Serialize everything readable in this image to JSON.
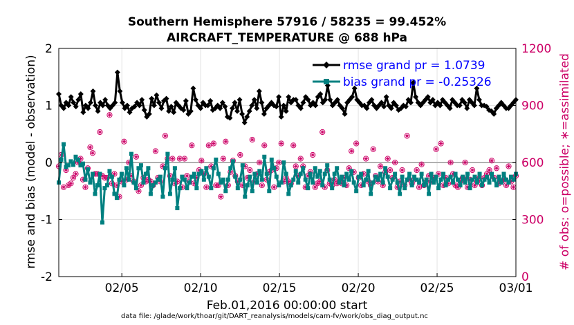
{
  "chart_data": {
    "type": "line",
    "title": "Southern Hemisphere 57916 / 58235 = 99.452%",
    "subtitle": "AIRCRAFT_TEMPERATURE @ 688 hPa",
    "ylabel": "rmse and bias (model - observation)",
    "y2label": "# of obs: o=possible; ∗=assimilated",
    "xlabel": "Feb.01,2016 00:00:00 start",
    "footer": "data file: /glade/work/thoar/git/DART_reanalysis/models/cam-fv/work/obs_diag_output.nc",
    "xlim": [
      0,
      29
    ],
    "ylim": [
      -2,
      2
    ],
    "y2lim": [
      0,
      1200
    ],
    "yticks": [
      {
        "v": 2,
        "label": "2"
      },
      {
        "v": 1,
        "label": "1"
      },
      {
        "v": 0,
        "label": "0"
      },
      {
        "v": -1,
        "label": "-1"
      },
      {
        "v": -2,
        "label": "-2"
      }
    ],
    "y2ticks": [
      {
        "v": 1200,
        "label": "1200"
      },
      {
        "v": 900,
        "label": "900"
      },
      {
        "v": 600,
        "label": "600"
      },
      {
        "v": 300,
        "label": "300"
      },
      {
        "v": 0,
        "label": "0"
      }
    ],
    "xticks": [
      {
        "v": 4,
        "label": "02/05"
      },
      {
        "v": 9,
        "label": "02/10"
      },
      {
        "v": 14,
        "label": "02/15"
      },
      {
        "v": 19,
        "label": "02/20"
      },
      {
        "v": 24,
        "label": "02/25"
      },
      {
        "v": 29,
        "label": "03/01"
      }
    ],
    "legend": [
      {
        "name": "rmse grand pr = 1.0739",
        "color": "#000000"
      },
      {
        "name": "bias grand pr = -0.25326",
        "color": "#008080"
      }
    ],
    "series": [
      {
        "name": "rmse",
        "color": "#000000",
        "axis": "left",
        "values": [
          1.2,
          1.0,
          0.95,
          1.05,
          1.0,
          1.15,
          1.05,
          0.98,
          1.1,
          1.2,
          0.88,
          1.0,
          0.95,
          1.05,
          1.25,
          1.0,
          0.9,
          1.05,
          1.0,
          1.1,
          1.0,
          0.95,
          1.0,
          1.05,
          1.58,
          1.25,
          1.05,
          0.95,
          1.0,
          0.88,
          0.95,
          0.98,
          1.05,
          1.0,
          1.1,
          0.92,
          0.8,
          0.85,
          1.12,
          1.0,
          1.18,
          1.05,
          0.95,
          1.08,
          1.12,
          0.9,
          0.98,
          0.88,
          1.05,
          1.0,
          0.95,
          0.92,
          1.08,
          0.85,
          0.9,
          1.3,
          1.1,
          1.0,
          0.95,
          1.05,
          1.0,
          1.0,
          1.08,
          0.92,
          0.95,
          1.0,
          0.95,
          1.05,
          0.98,
          0.8,
          0.78,
          0.95,
          1.05,
          0.9,
          1.1,
          0.85,
          0.7,
          0.8,
          0.9,
          1.0,
          1.1,
          0.95,
          1.25,
          1.05,
          0.85,
          0.95,
          1.0,
          1.05,
          1.0,
          0.98,
          1.15,
          0.8,
          1.0,
          0.9,
          1.15,
          1.05,
          1.1,
          1.1,
          1.0,
          0.95,
          1.05,
          1.15,
          1.1,
          1.0,
          1.05,
          1.0,
          1.15,
          1.2,
          1.05,
          1.1,
          1.35,
          1.1,
          1.0,
          1.05,
          1.1,
          1.0,
          0.95,
          0.85,
          1.05,
          1.1,
          1.15,
          1.3,
          1.1,
          1.05,
          1.0,
          1.0,
          0.95,
          1.05,
          1.1,
          1.0,
          0.95,
          1.0,
          1.05,
          0.98,
          1.15,
          1.0,
          0.95,
          1.05,
          1.0,
          0.92,
          0.95,
          1.0,
          0.98,
          1.1,
          1.05,
          1.4,
          1.15,
          1.05,
          1.0,
          1.05,
          1.1,
          1.15,
          1.05,
          1.1,
          1.0,
          1.05,
          1.0,
          1.1,
          1.05,
          1.0,
          0.95,
          1.1,
          1.05,
          1.0,
          1.0,
          1.1,
          1.05,
          0.95,
          1.1,
          1.05,
          1.0,
          1.3,
          1.1,
          1.0,
          1.0,
          0.98,
          0.92,
          0.9,
          0.85,
          0.95,
          1.0,
          1.05,
          1.0,
          0.95,
          0.95,
          1.0,
          1.05,
          1.1
        ]
      },
      {
        "name": "bias",
        "color": "#008080",
        "axis": "left",
        "values": [
          -0.35,
          0.05,
          0.32,
          -0.08,
          -0.05,
          0.02,
          -0.04,
          0.1,
          0.05,
          -0.05,
          -0.02,
          -0.3,
          -0.12,
          -0.35,
          -0.2,
          -0.55,
          -0.4,
          -0.2,
          -1.05,
          -0.45,
          -0.4,
          -0.15,
          -0.25,
          -0.55,
          -0.62,
          -0.3,
          -0.2,
          -0.4,
          -0.1,
          -0.3,
          0.15,
          -0.35,
          -0.45,
          -0.1,
          -0.05,
          -0.35,
          -0.2,
          -0.1,
          -0.55,
          -0.4,
          -0.35,
          -0.3,
          -0.25,
          -0.6,
          -0.1,
          0.15,
          -0.55,
          -0.3,
          -0.1,
          -0.8,
          -0.45,
          -0.25,
          -0.3,
          -0.45,
          -0.35,
          -0.25,
          -0.2,
          -0.45,
          -0.2,
          -0.15,
          -0.3,
          -0.1,
          -0.25,
          -0.45,
          -0.1,
          0.05,
          -0.2,
          -0.35,
          -0.3,
          -0.5,
          -0.3,
          -0.1,
          0.02,
          -0.25,
          -0.45,
          -0.3,
          -0.05,
          -0.6,
          -0.4,
          -0.25,
          -0.5,
          -0.2,
          -0.35,
          -0.15,
          -0.3,
          0.1,
          -0.2,
          -0.5,
          0.05,
          -0.1,
          -0.25,
          -0.4,
          -0.35,
          0.0,
          -0.2,
          -0.55,
          -0.4,
          -0.3,
          -0.15,
          -0.35,
          -0.2,
          -0.1,
          -0.3,
          -0.45,
          -0.2,
          -0.35,
          -0.1,
          -0.25,
          -0.15,
          -0.4,
          -0.2,
          -0.05,
          -0.3,
          -0.45,
          -0.2,
          -0.1,
          -0.35,
          -0.25,
          -0.4,
          -0.2,
          -0.3,
          -0.15,
          -0.35,
          -0.5,
          -0.25,
          -0.2,
          -0.4,
          -0.3,
          -0.15,
          -0.55,
          -0.35,
          -0.25,
          -0.3,
          -0.2,
          -0.35,
          -0.1,
          -0.25,
          -0.45,
          -0.3,
          -0.2,
          -0.35,
          -0.55,
          -0.25,
          -0.45,
          -0.3,
          -0.2,
          -0.4,
          -0.25,
          -0.3,
          -0.35,
          -0.2,
          -0.4,
          -0.3,
          -0.55,
          -0.2,
          -0.35,
          -0.25,
          -0.45,
          -0.3,
          -0.2,
          -0.4,
          -0.3,
          -0.25,
          -0.35,
          -0.2,
          -0.3,
          -0.4,
          -0.25,
          -0.35,
          -0.2,
          -0.45,
          -0.3,
          -0.25,
          -0.35,
          -0.2,
          -0.4,
          -0.3,
          -0.25,
          -0.35,
          -0.2,
          -0.3,
          -0.4,
          -0.25,
          -0.35,
          -0.2,
          -0.3,
          -0.35,
          -0.25,
          -0.3,
          -0.2
        ]
      },
      {
        "name": "obs possible",
        "color": "#cc0066",
        "axis": "right",
        "values": [
          580,
          640,
          470,
          560,
          480,
          490,
          520,
          540,
          600,
          620,
          510,
          470,
          570,
          680,
          650,
          540,
          540,
          760,
          530,
          520,
          520,
          850,
          490,
          540,
          480,
          420,
          500,
          710,
          510,
          600,
          530,
          500,
          630,
          450,
          480,
          520,
          500,
          510,
          500,
          480,
          660,
          520,
          500,
          580,
          740,
          620,
          530,
          620,
          490,
          500,
          620,
          470,
          620,
          530,
          500,
          690,
          490,
          520,
          560,
          610,
          540,
          470,
          690,
          580,
          700,
          480,
          480,
          420,
          620,
          710,
          480,
          550,
          610,
          530,
          500,
          640,
          480,
          580,
          520,
          560,
          720,
          500,
          540,
          600,
          480,
          690,
          510,
          550,
          560,
          470,
          570,
          600,
          700,
          500,
          520,
          500,
          490,
          690,
          580,
          530,
          620,
          580,
          470,
          530,
          550,
          640,
          470,
          490,
          500,
          760,
          470,
          560,
          490,
          480,
          510,
          490,
          500,
          490,
          520,
          480,
          570,
          660,
          550,
          700,
          520,
          480,
          540,
          620,
          500,
          480,
          670,
          530,
          500,
          580,
          480,
          550,
          620,
          560,
          520,
          600,
          470,
          500,
          560,
          480,
          740,
          510,
          490,
          510,
          560,
          470,
          590,
          480,
          500,
          530,
          500,
          520,
          670,
          540,
          700,
          480,
          520,
          490,
          600,
          540,
          480,
          470,
          500,
          520,
          600,
          470,
          510,
          560,
          480,
          500,
          520,
          480,
          520,
          540,
          560,
          610,
          520,
          570,
          490,
          500,
          510,
          480,
          580,
          500,
          470,
          530
        ]
      }
    ]
  }
}
